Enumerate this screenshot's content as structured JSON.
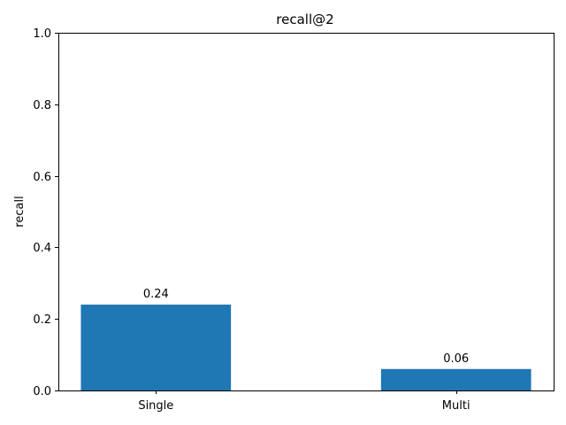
{
  "chart_data": {
    "type": "bar",
    "title": "recall@2",
    "xlabel": "",
    "ylabel": "recall",
    "categories": [
      "Single",
      "Multi"
    ],
    "values": [
      0.24,
      0.06
    ],
    "value_labels": [
      "0.24",
      "0.06"
    ],
    "ylim": [
      0,
      1
    ],
    "yticks": [
      0.0,
      0.2,
      0.4,
      0.6,
      0.8,
      1.0
    ],
    "ytick_labels": [
      "0.0",
      "0.2",
      "0.4",
      "0.6",
      "0.8",
      "1.0"
    ],
    "bar_color": "#1f77b4",
    "grid": false,
    "legend": "none"
  }
}
